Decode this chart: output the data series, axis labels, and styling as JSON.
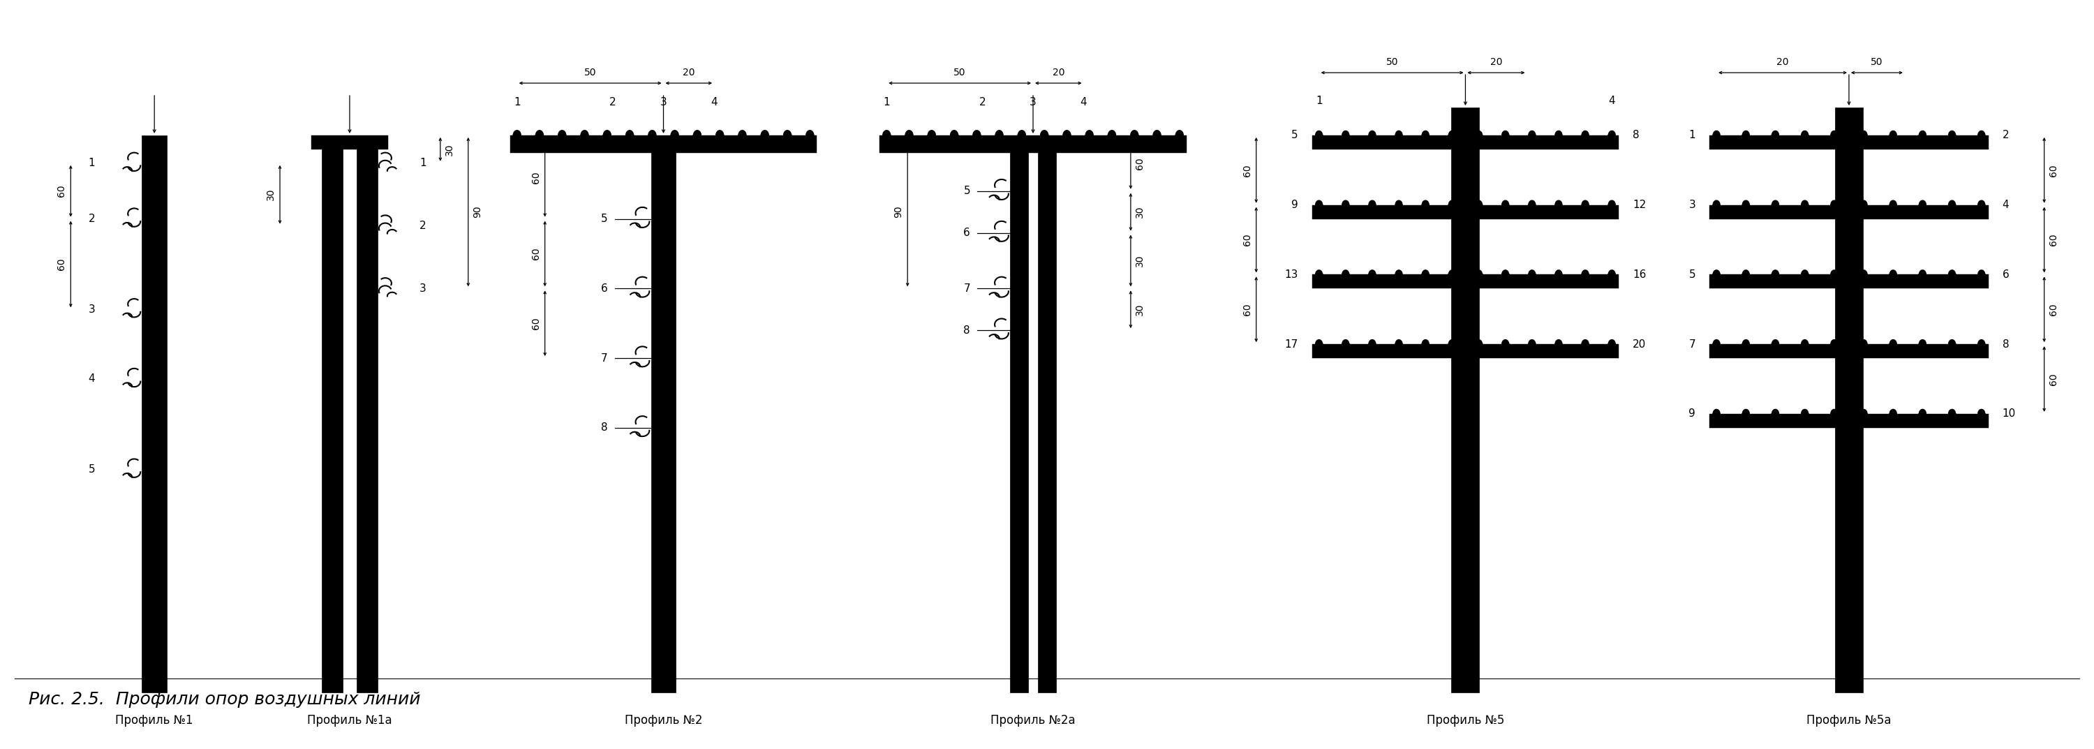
{
  "title": "Рис. 2.5.  Профили опор воздушных линий",
  "profiles": [
    {
      "name": "Профиль №1"
    },
    {
      "name": "Профиль №1а"
    },
    {
      "name": "Профиль №2"
    },
    {
      "name": "Профиль №2а"
    },
    {
      "name": "Профиль №5"
    },
    {
      "name": "Профиль №5а"
    }
  ],
  "bg_color": "#ffffff",
  "line_color": "#000000",
  "title_fontsize": 18,
  "label_fontsize": 11,
  "dim_fontsize": 10,
  "caption_fontsize": 12
}
